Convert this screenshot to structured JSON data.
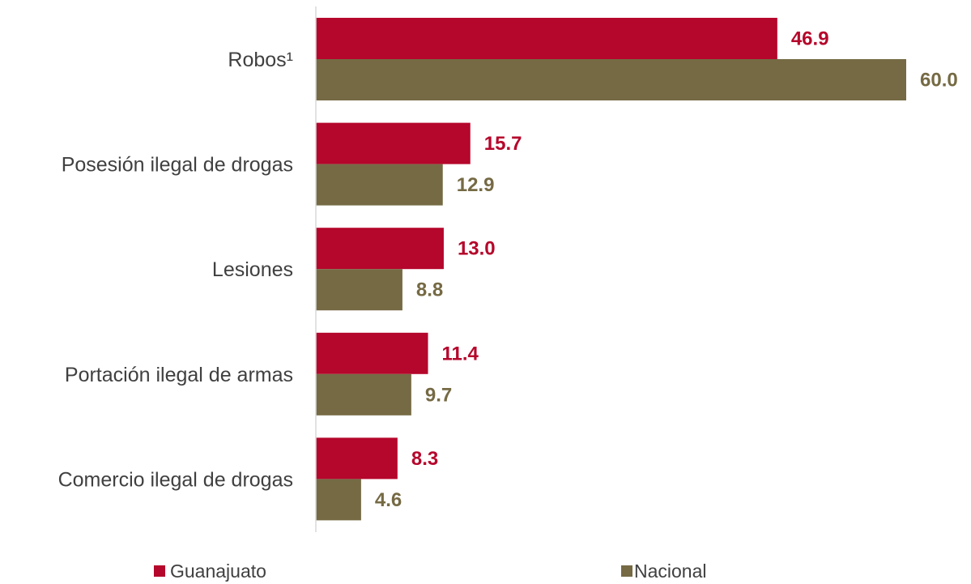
{
  "chart_data": {
    "type": "bar",
    "orientation": "horizontal",
    "categories": [
      "Robos¹",
      "Posesión ilegal de drogas",
      "Lesiones",
      "Portación ilegal de armas",
      "Comercio ilegal de drogas"
    ],
    "series": [
      {
        "name": "Guanajuato",
        "values": [
          46.9,
          15.7,
          13.0,
          11.4,
          8.3
        ],
        "value_labels": [
          "46.9",
          "15.7",
          "13.0",
          "11.4",
          "8.3"
        ],
        "color": "#B5062B"
      },
      {
        "name": "Nacional",
        "values": [
          60.0,
          12.9,
          8.8,
          9.7,
          4.6
        ],
        "value_labels": [
          "60.0",
          "12.9",
          "8.8",
          "9.7",
          "4.6"
        ],
        "color": "#756A44"
      }
    ],
    "xlim": [
      0,
      60
    ],
    "grid": false,
    "legend": "bottom",
    "title": "",
    "xlabel": "",
    "ylabel": ""
  }
}
